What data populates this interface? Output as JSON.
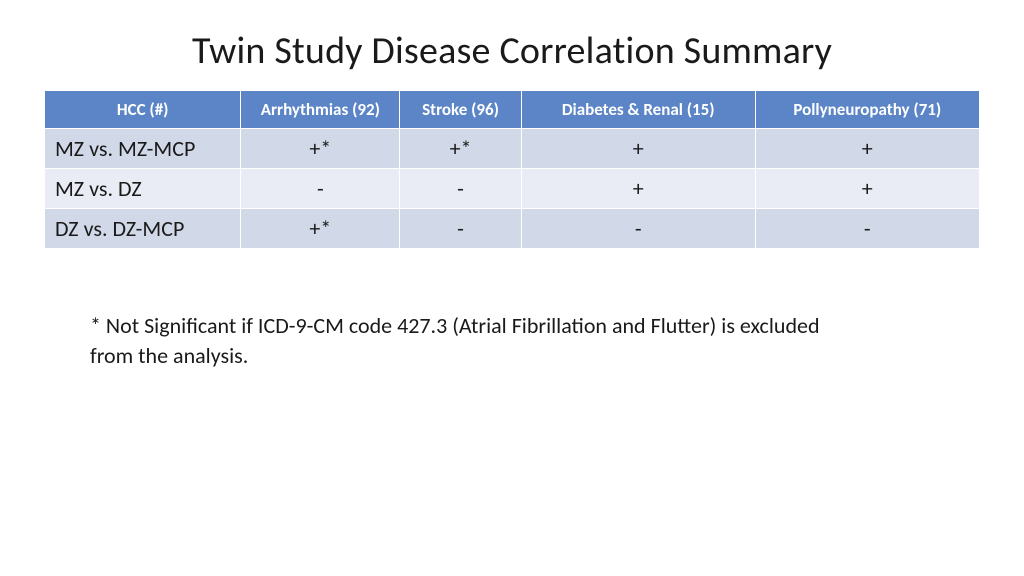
{
  "title": "Twin Study Disease Correlation Summary",
  "table": {
    "type": "table",
    "header_bg": "#5b85c6",
    "header_fg": "#ffffff",
    "row_odd_bg": "#d1d8e8",
    "row_even_bg": "#e9ecf4",
    "border_color": "#ffffff",
    "header_fontsize": 17,
    "cell_fontsize": 22,
    "columns": [
      "HCC (#)",
      "Arrhythmias (92)",
      "Stroke (96)",
      "Diabetes & Renal (15)",
      "Pollyneuropathy (71)"
    ],
    "rows": [
      {
        "label": "MZ vs. MZ-MCP",
        "cells": [
          "+*",
          "+*",
          "+",
          "+"
        ]
      },
      {
        "label": "MZ vs. DZ",
        "cells": [
          "-",
          "-",
          "+",
          "+"
        ]
      },
      {
        "label": "DZ vs. DZ-MCP",
        "cells": [
          "+*",
          "-",
          "-",
          "-"
        ]
      }
    ]
  },
  "footnote": "* Not Significant if ICD-9-CM code 427.3 (Atrial Fibrillation and Flutter) is excluded from the analysis."
}
